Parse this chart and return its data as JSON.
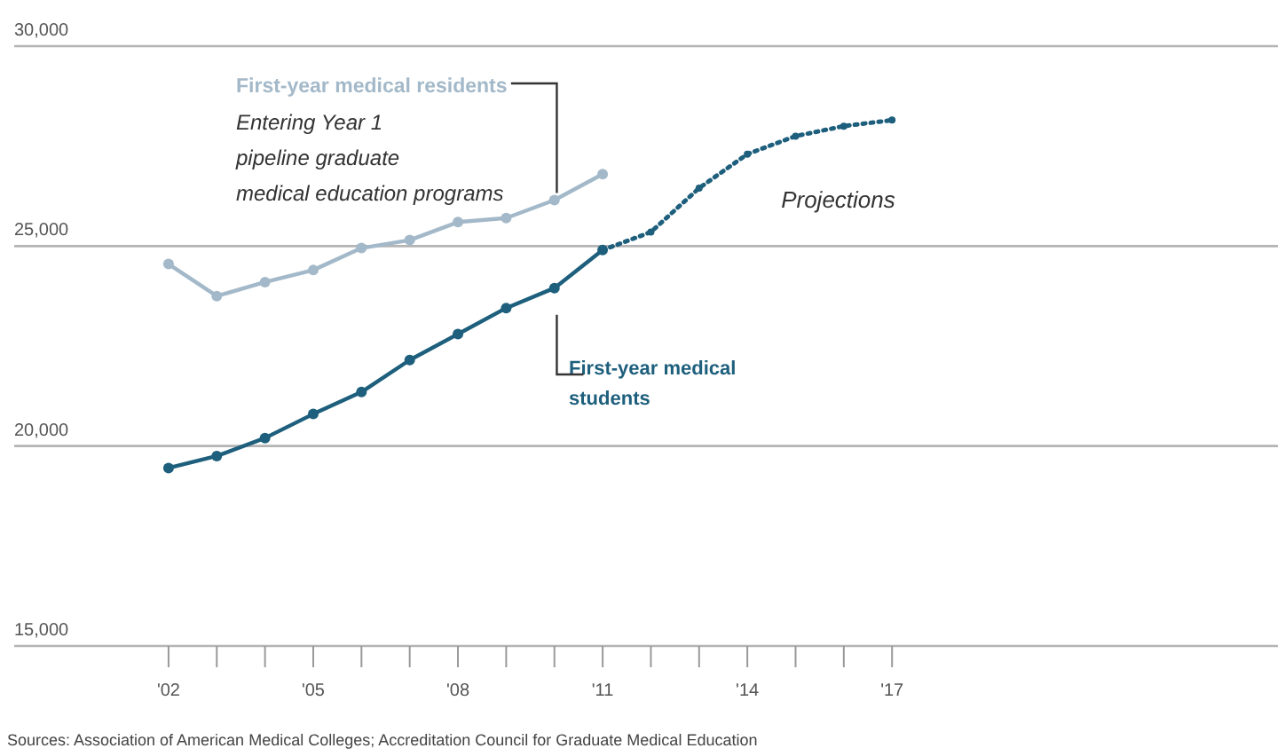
{
  "chart_data": {
    "type": "line",
    "x": [
      2002,
      2003,
      2004,
      2005,
      2006,
      2007,
      2008,
      2009,
      2010,
      2011
    ],
    "series": [
      {
        "name": "First-year medical residents",
        "color": "#a3b9c9",
        "values": [
          24550,
          23750,
          24100,
          24400,
          24950,
          25150,
          25600,
          25700,
          26150,
          26800
        ],
        "marker": "circle",
        "line_style": "solid"
      },
      {
        "name": "First-year medical students",
        "color": "#1d5f7c",
        "values": [
          19450,
          19750,
          20200,
          20800,
          21350,
          22150,
          22800,
          23450,
          23950,
          24900
        ],
        "marker": "circle",
        "line_style": "solid"
      },
      {
        "color": "#1d5f7c",
        "x": [
          2011,
          2012,
          2013,
          2014,
          2015,
          2016,
          2017
        ],
        "values": [
          24900,
          25350,
          26450,
          27300,
          27750,
          28000,
          28150
        ],
        "marker": "circle",
        "line_style": "dotted"
      }
    ],
    "xlim": [
      1998.8,
      2025
    ],
    "xticks": [
      {
        "value": 2002,
        "label": "'02"
      },
      {
        "value": 2003,
        "label": null
      },
      {
        "value": 2004,
        "label": null
      },
      {
        "value": 2005,
        "label": "'05"
      },
      {
        "value": 2006,
        "label": null
      },
      {
        "value": 2007,
        "label": null
      },
      {
        "value": 2008,
        "label": "'08"
      },
      {
        "value": 2009,
        "label": null
      },
      {
        "value": 2010,
        "label": null
      },
      {
        "value": 2011,
        "label": "'11"
      },
      {
        "value": 2012,
        "label": null
      },
      {
        "value": 2013,
        "label": null
      },
      {
        "value": 2014,
        "label": "'14"
      },
      {
        "value": 2015,
        "label": null
      },
      {
        "value": 2016,
        "label": null
      },
      {
        "value": 2017,
        "label": "'17"
      }
    ],
    "ylim": [
      15000,
      30000
    ],
    "yticks": [
      {
        "value": 15000,
        "label": "15,000"
      },
      {
        "value": 20000,
        "label": "20,000"
      },
      {
        "value": 25000,
        "label": "25,000"
      },
      {
        "value": 30000,
        "label": "30,000"
      }
    ],
    "grid": "y",
    "annotations": [
      "Entering Year 1 pipeline graduate medical education programs",
      "Projections",
      "Sources: Association of American Medical Colleges; Accreditation Council for Graduate Medical Education"
    ]
  }
}
